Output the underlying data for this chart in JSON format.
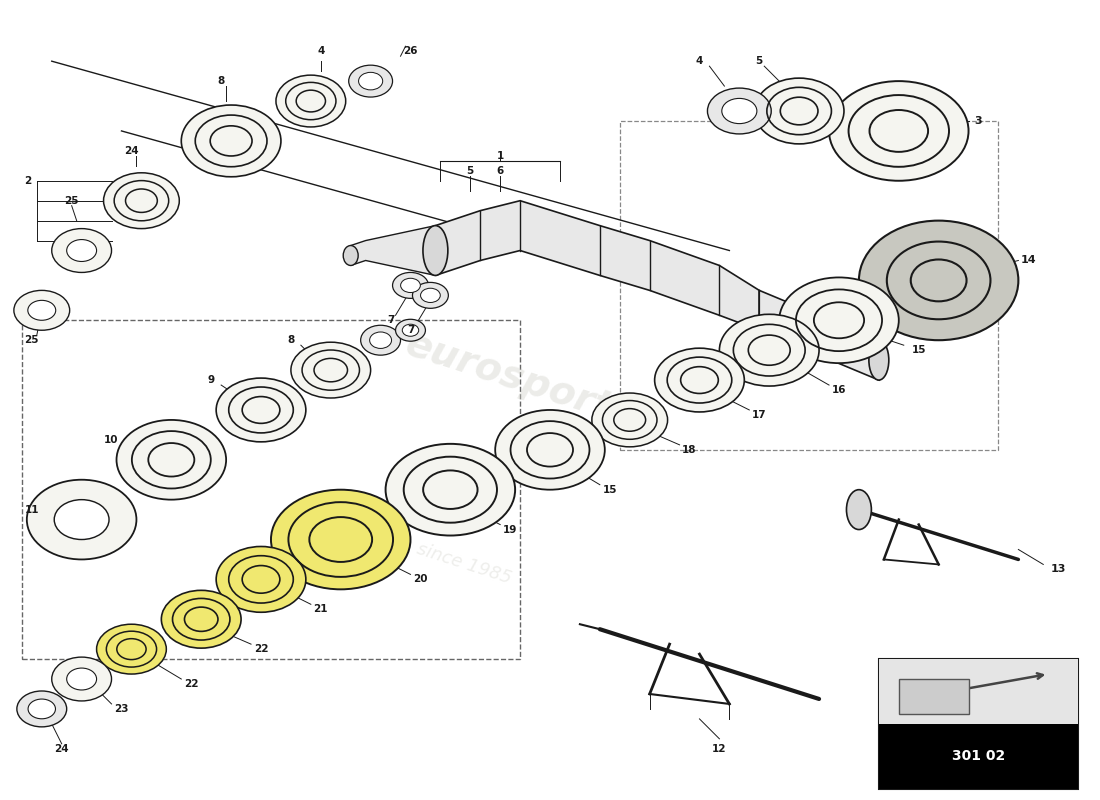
{
  "bg_color": "#ffffff",
  "line_color": "#1a1a1a",
  "diagram_code": "301 02",
  "watermark_color": "#d0d0c8",
  "fig_w": 11.0,
  "fig_h": 8.0,
  "dpi": 100,
  "xlim": [
    0,
    110
  ],
  "ylim": [
    0,
    80
  ],
  "shaft_color": "#e8e8e8",
  "bearing_face_color": "#f5f5f0",
  "yellow_color": "#f0e870",
  "dark_face_color": "#c8c8c0"
}
